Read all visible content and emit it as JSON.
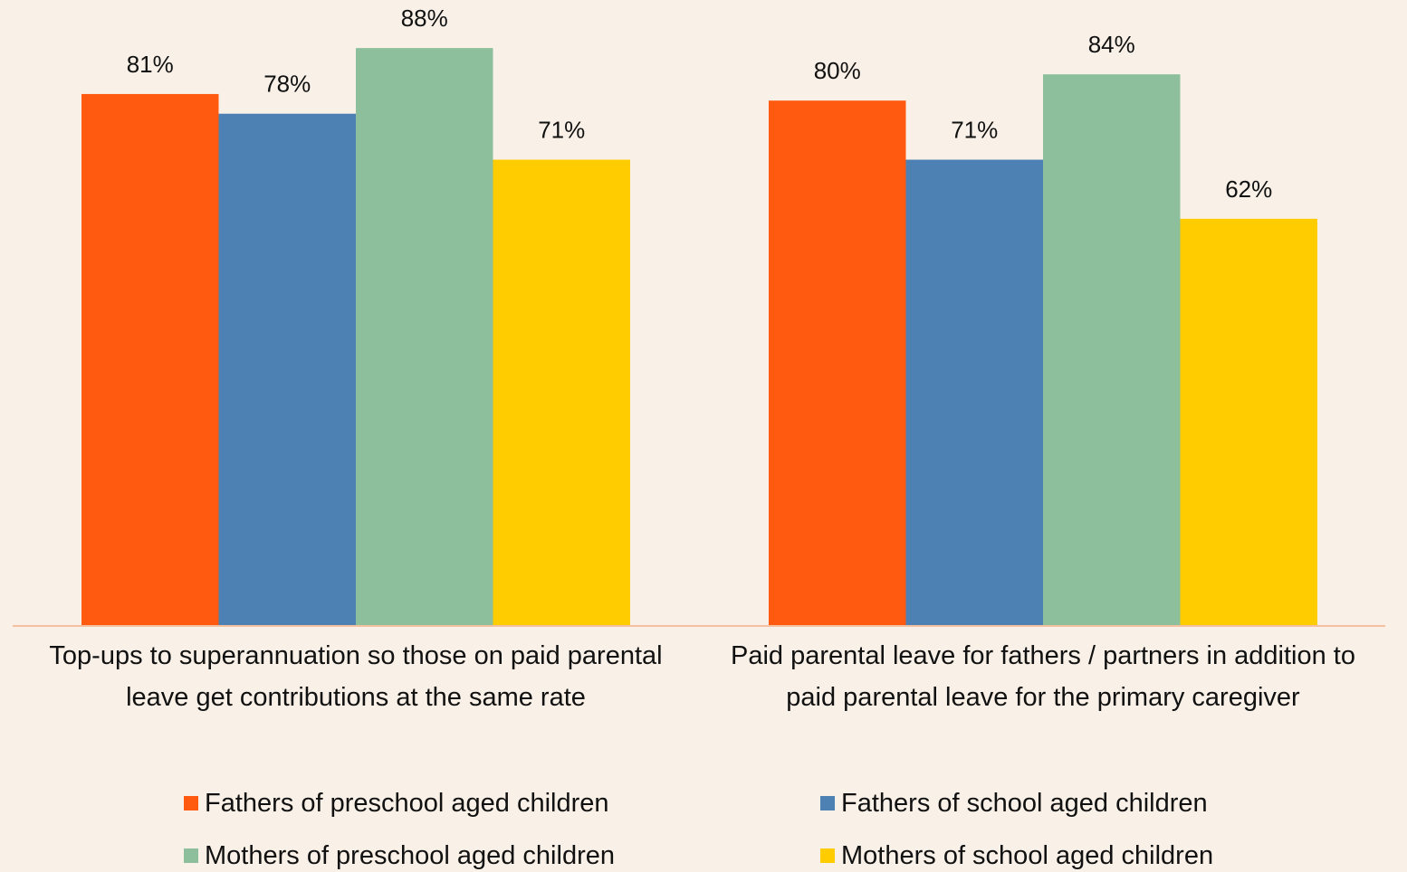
{
  "chart_data": {
    "type": "bar",
    "categories": [
      "Top-ups to superannuation so those on paid parental leave get contributions at the same rate",
      "Paid parental leave for fathers / partners in addition to paid parental leave for the primary caregiver"
    ],
    "series": [
      {
        "name": "Fathers of preschool aged children",
        "color": "#ff5a10",
        "values": [
          81,
          80
        ],
        "value_labels": [
          "81%",
          "80%"
        ]
      },
      {
        "name": "Fathers of school aged children",
        "color": "#4e81b3",
        "values": [
          78,
          71
        ],
        "value_labels": [
          "78%",
          "71%"
        ]
      },
      {
        "name": "Mothers of preschool aged children",
        "color": "#8ebf9c",
        "values": [
          88,
          84
        ],
        "value_labels": [
          "88%",
          "84%"
        ]
      },
      {
        "name": "Mothers of school aged children",
        "color": "#ffcc00",
        "values": [
          71,
          62
        ],
        "value_labels": [
          "71%",
          "62%"
        ]
      }
    ]
  }
}
